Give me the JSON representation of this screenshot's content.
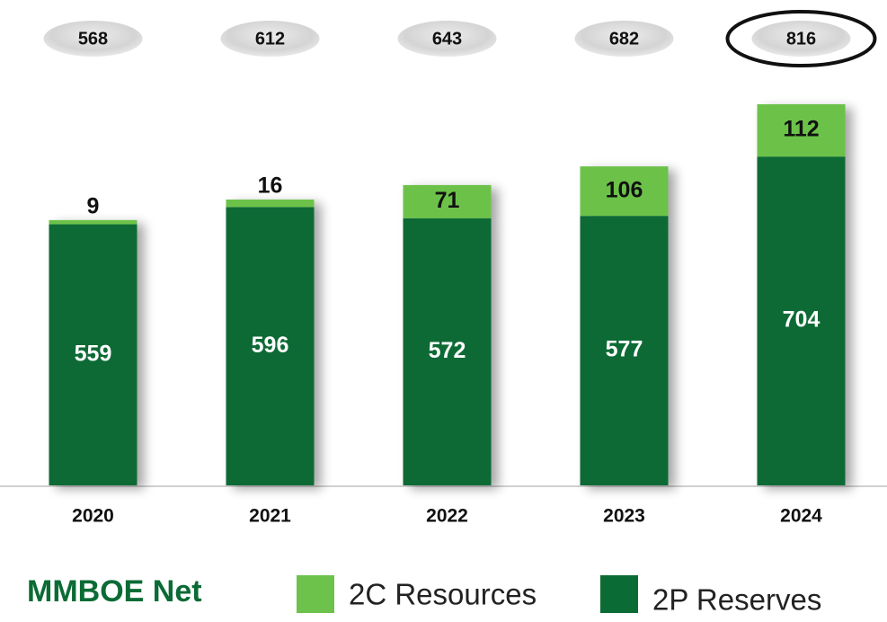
{
  "chart_data": {
    "type": "stacked_bar",
    "categories": [
      "2020",
      "2021",
      "2022",
      "2023",
      "2024"
    ],
    "series": [
      {
        "name": "2P Reserves",
        "color": "#0b6b35",
        "values": [
          559,
          596,
          572,
          577,
          704
        ]
      },
      {
        "name": "2C Resources",
        "color": "#6cc24a",
        "values": [
          9,
          16,
          71,
          106,
          112
        ]
      }
    ],
    "totals": [
      568,
      612,
      643,
      682,
      816
    ],
    "highlight_index": 4,
    "unit_label": "MMBOE Net"
  }
}
